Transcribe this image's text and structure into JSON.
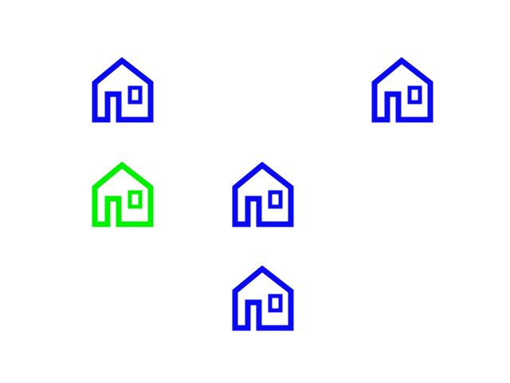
{
  "colors": {
    "default": "#0a0aee",
    "selected": "#00ee00",
    "background": "#ffffff"
  },
  "houses": [
    {
      "icon": "house-icon",
      "state": "default"
    },
    {
      "icon": "house-icon",
      "state": "default"
    },
    {
      "icon": "house-icon",
      "state": "selected"
    },
    {
      "icon": "house-icon",
      "state": "default"
    },
    {
      "icon": "house-icon",
      "state": "default"
    }
  ]
}
